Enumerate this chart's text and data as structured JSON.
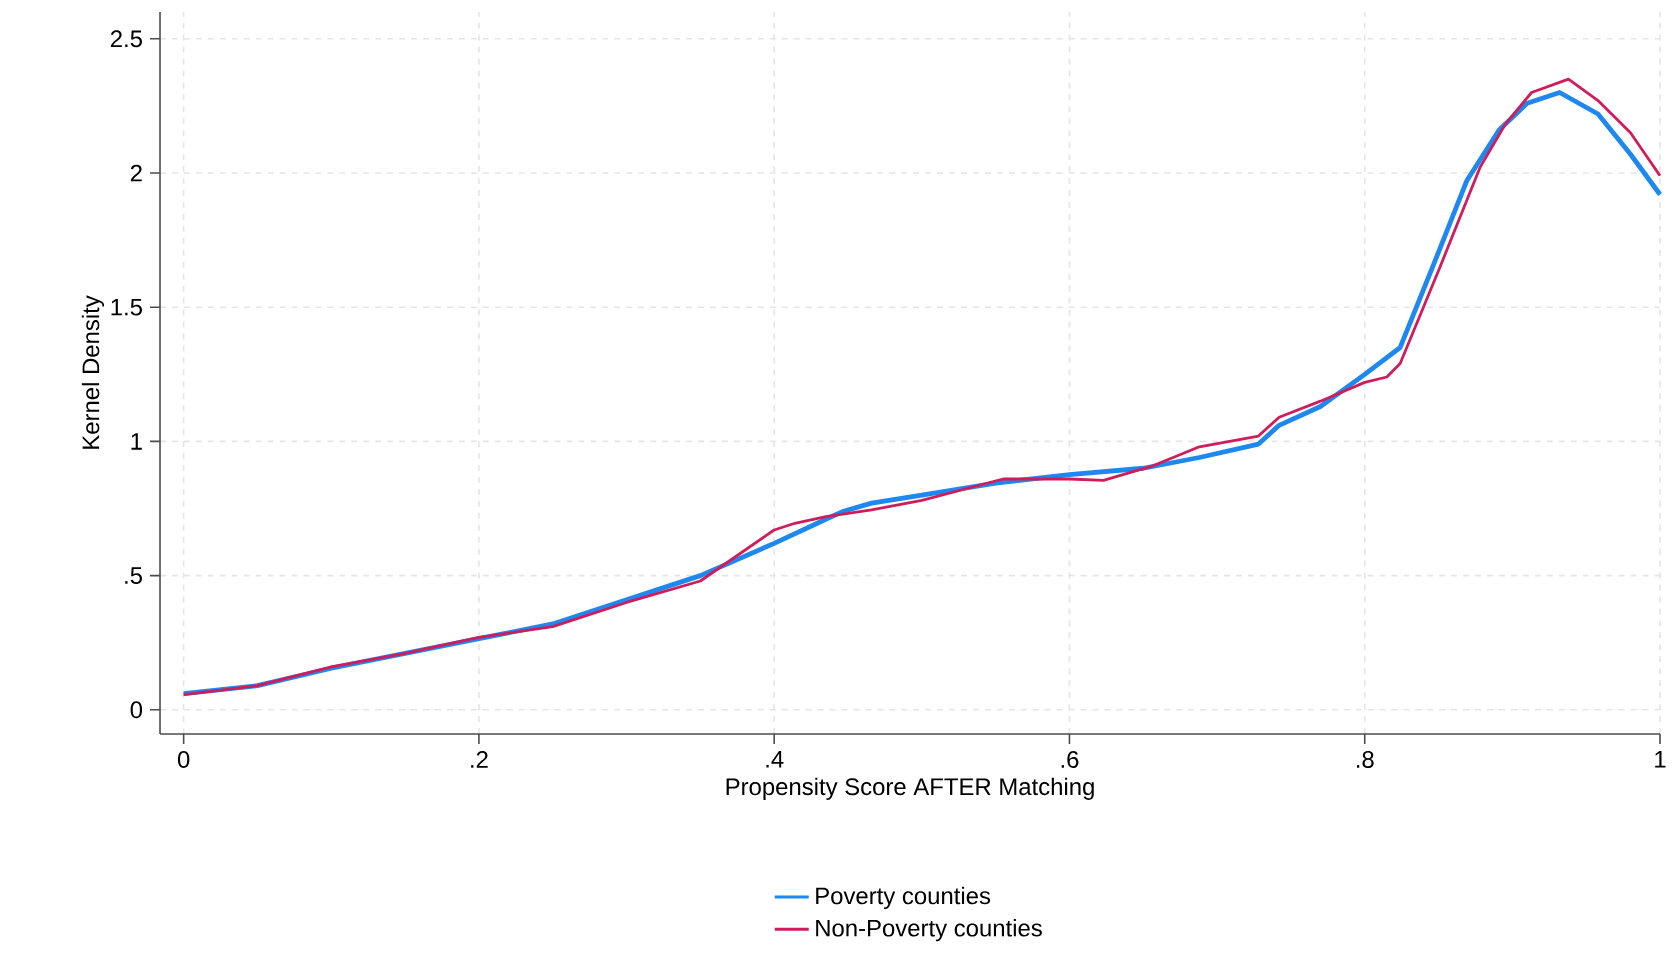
{
  "chart_data": {
    "type": "line",
    "xlabel": "Propensity Score AFTER Matching",
    "ylabel": "Kernel Density",
    "xlim": [
      -0.016,
      1
    ],
    "ylim": [
      -0.09,
      2.6
    ],
    "xticks": [
      {
        "value": 0,
        "label": "0"
      },
      {
        "value": 0.2,
        "label": ".2"
      },
      {
        "value": 0.4,
        "label": ".4"
      },
      {
        "value": 0.6,
        "label": ".6"
      },
      {
        "value": 0.8,
        "label": ".8"
      },
      {
        "value": 1,
        "label": "1"
      }
    ],
    "yticks": [
      {
        "value": 0,
        "label": "0"
      },
      {
        "value": 0.5,
        "label": ".5"
      },
      {
        "value": 1,
        "label": "1"
      },
      {
        "value": 1.5,
        "label": "1.5"
      },
      {
        "value": 2,
        "label": "2"
      },
      {
        "value": 2.5,
        "label": "2.5"
      }
    ],
    "grid": true,
    "legend": "bottom",
    "marker": "none",
    "line_style": "solid",
    "series": [
      {
        "name": "Poverty counties",
        "color": "#1e88f0",
        "x": [
          0,
          0.05,
          0.1,
          0.15,
          0.2,
          0.25,
          0.3,
          0.35,
          0.4,
          0.435,
          0.447,
          0.466,
          0.5,
          0.55,
          0.6,
          0.65,
          0.688,
          0.728,
          0.742,
          0.77,
          0.8,
          0.824,
          0.846,
          0.869,
          0.891,
          0.91,
          0.932,
          0.958,
          0.98,
          1.0
        ],
        "values": [
          0.06,
          0.09,
          0.155,
          0.21,
          0.265,
          0.32,
          0.41,
          0.5,
          0.62,
          0.71,
          0.74,
          0.77,
          0.8,
          0.845,
          0.876,
          0.9,
          0.94,
          0.99,
          1.06,
          1.13,
          1.25,
          1.35,
          1.65,
          1.97,
          2.16,
          2.26,
          2.3,
          2.22,
          2.07,
          1.92
        ]
      },
      {
        "name": "Non-Poverty counties",
        "color": "#d01c5b",
        "x": [
          0,
          0.05,
          0.1,
          0.15,
          0.2,
          0.25,
          0.3,
          0.35,
          0.4,
          0.414,
          0.435,
          0.466,
          0.5,
          0.555,
          0.6,
          0.623,
          0.657,
          0.688,
          0.728,
          0.742,
          0.77,
          0.8,
          0.815,
          0.824,
          0.851,
          0.878,
          0.895,
          0.913,
          0.938,
          0.958,
          0.98,
          1.0
        ],
        "values": [
          0.057,
          0.09,
          0.16,
          0.21,
          0.27,
          0.31,
          0.4,
          0.48,
          0.67,
          0.695,
          0.72,
          0.745,
          0.78,
          0.86,
          0.86,
          0.855,
          0.91,
          0.98,
          1.02,
          1.09,
          1.15,
          1.22,
          1.24,
          1.29,
          1.65,
          2.02,
          2.18,
          2.3,
          2.35,
          2.27,
          2.15,
          1.99
        ]
      }
    ]
  }
}
